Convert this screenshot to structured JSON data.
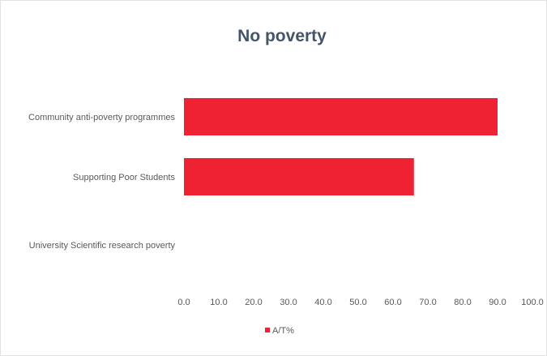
{
  "chart_data": {
    "type": "bar",
    "orientation": "horizontal",
    "title": "No poverty",
    "categories": [
      "Community anti-poverty programmes",
      "Supporting Poor Students",
      "University Scientific research poverty"
    ],
    "series": [
      {
        "name": "A/T%",
        "values": [
          90.0,
          66.0,
          0.0
        ],
        "color": "#ee2233"
      }
    ],
    "xlim": [
      0,
      100
    ],
    "xticks": [
      0,
      10,
      20,
      30,
      40,
      50,
      60,
      70,
      80,
      90,
      100
    ],
    "tick_format_decimals": 1,
    "grid": false,
    "legend_position": "bottom-center"
  }
}
